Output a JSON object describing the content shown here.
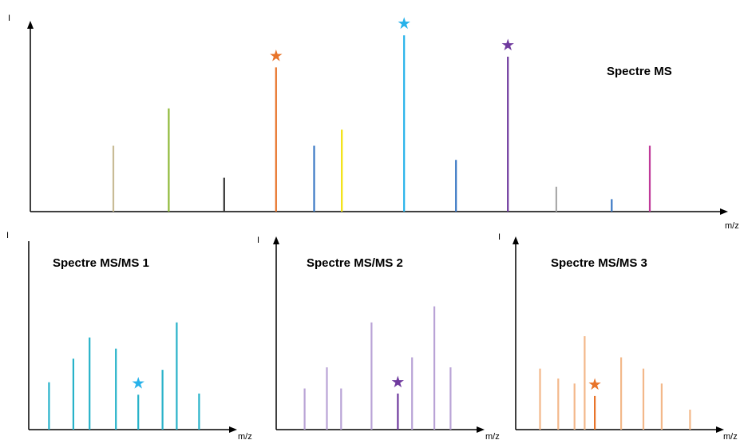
{
  "chart_data": [
    {
      "type": "bar",
      "title": "Spectre MS",
      "ylabel": "I",
      "xlabel": "m/z",
      "peaks": [
        {
          "x": 0.12,
          "value": 0.37,
          "color": "#c8bc96",
          "marked": false
        },
        {
          "x": 0.2,
          "value": 0.58,
          "color": "#8fba3a",
          "marked": false
        },
        {
          "x": 0.28,
          "value": 0.19,
          "color": "#333333",
          "marked": false
        },
        {
          "x": 0.355,
          "value": 0.81,
          "color": "#e8742a",
          "marked": true,
          "star_color": "#e8742a"
        },
        {
          "x": 0.41,
          "value": 0.37,
          "color": "#3a78c4",
          "marked": false
        },
        {
          "x": 0.45,
          "value": 0.46,
          "color": "#f2e20c",
          "marked": false
        },
        {
          "x": 0.54,
          "value": 0.99,
          "color": "#27b2ea",
          "marked": true,
          "star_color": "#27b2ea"
        },
        {
          "x": 0.615,
          "value": 0.29,
          "color": "#3a78c4",
          "marked": false
        },
        {
          "x": 0.69,
          "value": 0.87,
          "color": "#6f3a9e",
          "marked": true,
          "star_color": "#6f3a9e"
        },
        {
          "x": 0.76,
          "value": 0.14,
          "color": "#aaaaaa",
          "marked": false
        },
        {
          "x": 0.84,
          "value": 0.07,
          "color": "#3a78c4",
          "marked": false
        },
        {
          "x": 0.895,
          "value": 0.37,
          "color": "#c03a9a",
          "marked": false
        }
      ]
    },
    {
      "type": "bar",
      "title": "Spectre MS/MS 1",
      "ylabel": "I",
      "xlabel": "m/z",
      "peaks": [
        {
          "x": 0.1,
          "value": 0.38,
          "color": "#27b2c9",
          "marked": false
        },
        {
          "x": 0.22,
          "value": 0.57,
          "color": "#27b2c9",
          "marked": false
        },
        {
          "x": 0.3,
          "value": 0.74,
          "color": "#27b2c9",
          "marked": false
        },
        {
          "x": 0.43,
          "value": 0.65,
          "color": "#27b2c9",
          "marked": false
        },
        {
          "x": 0.54,
          "value": 0.28,
          "color": "#27b2c9",
          "marked": true,
          "star_color": "#27b2ea"
        },
        {
          "x": 0.66,
          "value": 0.48,
          "color": "#27b2c9",
          "marked": false
        },
        {
          "x": 0.73,
          "value": 0.86,
          "color": "#27b2c9",
          "marked": false
        },
        {
          "x": 0.84,
          "value": 0.29,
          "color": "#27b2c9",
          "marked": false
        }
      ]
    },
    {
      "type": "bar",
      "title": "Spectre MS/MS 2",
      "ylabel": "I",
      "xlabel": "m/z",
      "peaks": [
        {
          "x": 0.14,
          "value": 0.33,
          "color": "#b9a3d6",
          "marked": false
        },
        {
          "x": 0.25,
          "value": 0.5,
          "color": "#b9a3d6",
          "marked": false
        },
        {
          "x": 0.32,
          "value": 0.33,
          "color": "#b9a3d6",
          "marked": false
        },
        {
          "x": 0.47,
          "value": 0.86,
          "color": "#b9a3d6",
          "marked": false
        },
        {
          "x": 0.6,
          "value": 0.29,
          "color": "#6f3a9e",
          "marked": true,
          "star_color": "#6f3a9e"
        },
        {
          "x": 0.67,
          "value": 0.58,
          "color": "#b9a3d6",
          "marked": false
        },
        {
          "x": 0.78,
          "value": 0.99,
          "color": "#b9a3d6",
          "marked": false
        },
        {
          "x": 0.86,
          "value": 0.5,
          "color": "#b9a3d6",
          "marked": false
        }
      ]
    },
    {
      "type": "bar",
      "title": "Spectre MS/MS 3",
      "ylabel": "I",
      "xlabel": "m/z",
      "peaks": [
        {
          "x": 0.12,
          "value": 0.49,
          "color": "#f3b88a",
          "marked": false
        },
        {
          "x": 0.21,
          "value": 0.41,
          "color": "#f3b88a",
          "marked": false
        },
        {
          "x": 0.29,
          "value": 0.37,
          "color": "#f3b88a",
          "marked": false
        },
        {
          "x": 0.34,
          "value": 0.75,
          "color": "#f3b88a",
          "marked": false
        },
        {
          "x": 0.39,
          "value": 0.27,
          "color": "#e8742a",
          "marked": true,
          "star_color": "#e8742a"
        },
        {
          "x": 0.52,
          "value": 0.58,
          "color": "#f3b88a",
          "marked": false
        },
        {
          "x": 0.63,
          "value": 0.49,
          "color": "#f3b88a",
          "marked": false
        },
        {
          "x": 0.72,
          "value": 0.37,
          "color": "#f3b88a",
          "marked": false
        },
        {
          "x": 0.86,
          "value": 0.16,
          "color": "#f3b88a",
          "marked": false
        }
      ]
    }
  ],
  "colors": {
    "axis": "#000000",
    "star_cyan": "#27b2ea",
    "star_orange": "#e8742a",
    "star_purple": "#6f3a9e"
  },
  "icons": {
    "star": "★"
  }
}
